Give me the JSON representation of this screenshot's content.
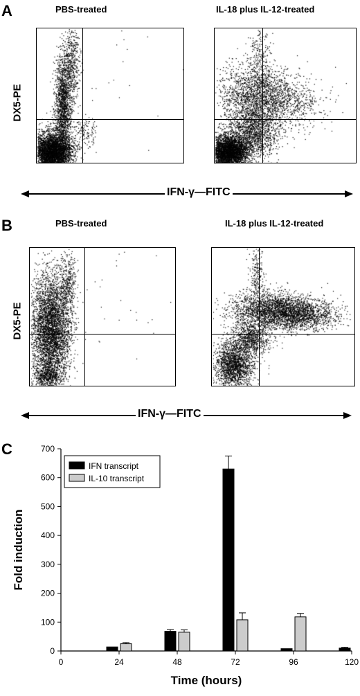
{
  "panels": {
    "A": {
      "letter": "A",
      "ylabel": "DX5-PE",
      "xlabel": "IFN-γ—FITC",
      "left_title": "PBS-treated",
      "right_title": "IL-18 plus IL-12-treated"
    },
    "B": {
      "letter": "B",
      "ylabel": "DX5-PE",
      "xlabel": "IFN-γ—FITC",
      "left_title": "PBS-treated",
      "right_title": "IL-18 plus IL-12-treated"
    },
    "C": {
      "letter": "C"
    }
  },
  "chart_data": [
    {
      "type": "scatter",
      "panel": "A",
      "subplot": "PBS-treated",
      "xlabel": "IFN-γ—FITC",
      "ylabel": "DX5-PE",
      "quadrant_gates": true
    },
    {
      "type": "scatter",
      "panel": "A",
      "subplot": "IL-18 plus IL-12-treated",
      "xlabel": "IFN-γ—FITC",
      "ylabel": "DX5-PE",
      "quadrant_gates": true
    },
    {
      "type": "scatter",
      "panel": "B",
      "subplot": "PBS-treated",
      "xlabel": "IFN-γ—FITC",
      "ylabel": "DX5-PE",
      "quadrant_gates": true
    },
    {
      "type": "scatter",
      "panel": "B",
      "subplot": "IL-18 plus IL-12-treated",
      "xlabel": "IFN-γ—FITC",
      "ylabel": "DX5-PE",
      "quadrant_gates": true
    },
    {
      "type": "bar",
      "panel": "C",
      "xlabel": "Time (hours)",
      "ylabel": "Fold induction",
      "x_ticks": [
        0,
        24,
        48,
        72,
        96,
        120
      ],
      "y_ticks": [
        0,
        100,
        200,
        300,
        400,
        500,
        600,
        700
      ],
      "xlim": [
        0,
        120
      ],
      "ylim": [
        0,
        700
      ],
      "categories": [
        24,
        48,
        72,
        96,
        120
      ],
      "series": [
        {
          "name": "IFN transcript",
          "color": "#000000",
          "values": [
            14,
            68,
            630,
            8,
            10
          ],
          "errors": [
            0,
            6,
            45,
            0,
            3
          ]
        },
        {
          "name": "IL-10 transcript",
          "color": "#cccccc",
          "values": [
            25,
            65,
            108,
            118,
            0
          ],
          "errors": [
            4,
            8,
            24,
            12,
            0
          ]
        }
      ],
      "legend_position": "top-left",
      "grid": false
    }
  ]
}
